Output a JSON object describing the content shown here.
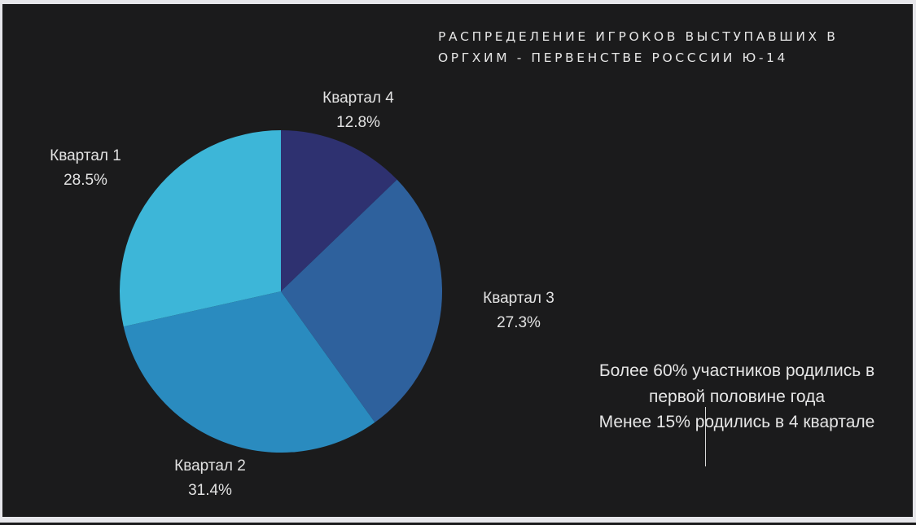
{
  "title": "РАСПРЕДЕЛЕНИЕ  ИГРОКОВ  ВЫСТУПАВШИХ В\nОРГХИМ - ПЕРВЕНСТВЕ РОСССИИ Ю-14",
  "annotation": {
    "line1": "Более 60% участников родились в",
    "line2": "первой половине года",
    "line3": "Менее 15% родились в 4 квартале"
  },
  "slices": [
    {
      "name": "Квартал 4",
      "percent_label": "12.8%",
      "value": 12.8,
      "color": "#2e3170"
    },
    {
      "name": "Квартал 3",
      "percent_label": "27.3%",
      "value": 27.3,
      "color": "#2e619d"
    },
    {
      "name": "Квартал 2",
      "percent_label": "31.4%",
      "value": 31.4,
      "color": "#2a8bbf"
    },
    {
      "name": "Квартал 1",
      "percent_label": "28.5%",
      "value": 28.5,
      "color": "#3db6d8"
    }
  ],
  "colors": {
    "background": "#1b1b1c",
    "frame": "#e6e6ea",
    "text": "#e6e6e6"
  },
  "chart_data": {
    "type": "pie",
    "title": "РАСПРЕДЕЛЕНИЕ ИГРОКОВ ВЫСТУПАВШИХ В ОРГХИМ - ПЕРВЕНСТВЕ РОСССИИ Ю-14",
    "categories": [
      "Квартал 1",
      "Квартал 2",
      "Квартал 3",
      "Квартал 4"
    ],
    "values": [
      28.5,
      31.4,
      27.3,
      12.8
    ],
    "unit": "%",
    "start_angle": "12 o'clock",
    "direction": "clockwise",
    "draw_order": [
      "Квартал 4",
      "Квартал 3",
      "Квартал 2",
      "Квартал 1"
    ],
    "colors": {
      "Квартал 1": "#3db6d8",
      "Квартал 2": "#2a8bbf",
      "Квартал 3": "#2e619d",
      "Квартал 4": "#2e3170"
    },
    "legend": "none (labels placed outside slices)",
    "annotations": [
      "Более 60% участников родились в первой половине года",
      "Менее 15% родились в 4 квартале"
    ]
  }
}
